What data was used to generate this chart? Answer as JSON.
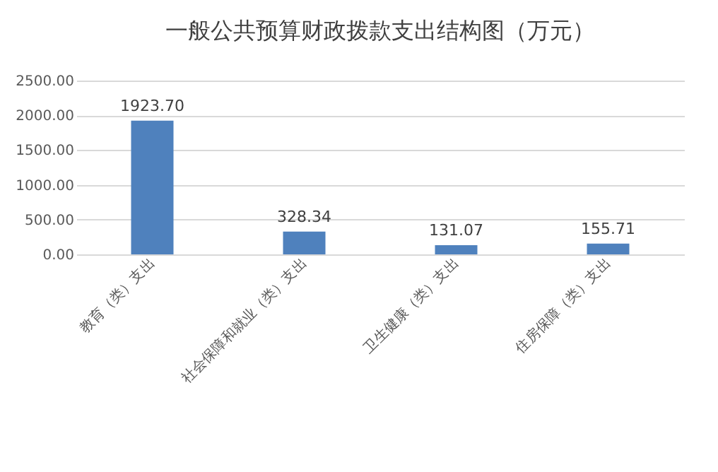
{
  "chart_data": {
    "type": "bar",
    "title": "一般公共预算财政拨款支出结构图（万元）",
    "categories": [
      "教育（类）支出",
      "社会保障和就业（类）支出",
      "卫生健康（类）支出",
      "住房保障（类）支出"
    ],
    "values": [
      1923.7,
      328.34,
      131.07,
      155.71
    ],
    "value_labels": [
      "1923.70",
      "328.34",
      "131.07",
      "155.71"
    ],
    "color": "#4f81bd",
    "ylim": [
      0,
      2500
    ],
    "yticks": [
      {
        "value": 0,
        "label": "0.00"
      },
      {
        "value": 500,
        "label": "500.00"
      },
      {
        "value": 1000,
        "label": "1000.00"
      },
      {
        "value": 1500,
        "label": "1500.00"
      },
      {
        "value": 2000,
        "label": "2000.00"
      },
      {
        "value": 2500,
        "label": "2500.00"
      }
    ],
    "grid": "y"
  }
}
